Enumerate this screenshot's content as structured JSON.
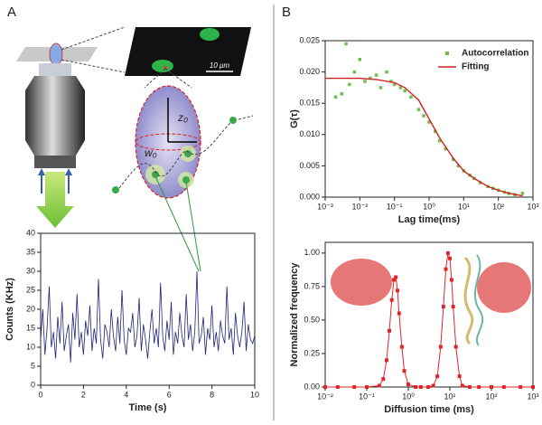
{
  "figure": {
    "panels": [
      "A",
      "B"
    ],
    "scale_bar": "10 μm",
    "labels": [
      "z₀",
      "w₀"
    ]
  },
  "chart_data": [
    {
      "type": "line",
      "xlabel": "Time (s)",
      "ylabel": "Counts (KHz)",
      "color": "#1f2378",
      "x": [
        0,
        0.1,
        0.2,
        0.3,
        0.4,
        0.5,
        0.6,
        0.7,
        0.8,
        0.9,
        1,
        1.1,
        1.2,
        1.3,
        1.4,
        1.5,
        1.6,
        1.7,
        1.8,
        1.9,
        2,
        2.1,
        2.2,
        2.3,
        2.4,
        2.5,
        2.6,
        2.7,
        2.8,
        2.9,
        3,
        3.1,
        3.2,
        3.3,
        3.4,
        3.5,
        3.6,
        3.7,
        3.8,
        3.9,
        4,
        4.1,
        4.2,
        4.3,
        4.4,
        4.5,
        4.6,
        4.7,
        4.8,
        4.9,
        5,
        5.1,
        5.2,
        5.3,
        5.4,
        5.5,
        5.6,
        5.7,
        5.8,
        5.9,
        6,
        6.1,
        6.2,
        6.3,
        6.4,
        6.5,
        6.6,
        6.7,
        6.8,
        6.9,
        7,
        7.1,
        7.2,
        7.3,
        7.4,
        7.5,
        7.6,
        7.7,
        7.8,
        7.9,
        8,
        8.1,
        8.2,
        8.3,
        8.4,
        8.5,
        8.6,
        8.7,
        8.8,
        8.9,
        9,
        9.1,
        9.2,
        9.3,
        9.4,
        9.5,
        9.6,
        9.7,
        9.8,
        9.9,
        10
      ],
      "values": [
        12,
        20,
        8,
        15,
        26,
        10,
        14,
        7,
        18,
        11,
        22,
        9,
        13,
        16,
        6,
        19,
        12,
        24,
        10,
        14,
        8,
        17,
        13,
        21,
        9,
        15,
        11,
        28,
        12,
        7,
        16,
        14,
        10,
        20,
        13,
        9,
        18,
        11,
        25,
        12,
        8,
        15,
        14,
        19,
        10,
        13,
        23,
        9,
        16,
        12,
        7,
        14,
        20,
        11,
        15,
        10,
        27,
        13,
        9,
        17,
        12,
        22,
        8,
        14,
        11,
        19,
        13,
        10,
        24,
        12,
        16,
        9,
        14,
        30,
        11,
        13,
        18,
        8,
        15,
        12,
        21,
        10,
        14,
        9,
        17,
        13,
        11,
        26,
        12,
        15,
        8,
        19,
        13,
        10,
        14,
        22,
        9,
        16,
        12,
        11,
        13
      ],
      "xlim": [
        0,
        10
      ],
      "xticks": [
        0,
        2,
        4,
        6,
        8,
        10
      ],
      "ylim": [
        0,
        40
      ],
      "yticks": [
        0,
        5,
        10,
        15,
        20,
        25,
        30,
        35,
        40
      ]
    },
    {
      "type": "scatter",
      "xlabel": "Lag time(ms)",
      "ylabel": "G(τ)",
      "xscale": "log",
      "legend": "upper right",
      "series": [
        {
          "name": "Autocorrelation",
          "type": "scatter",
          "color": "#6cbf4a",
          "x": [
            0.002,
            0.003,
            0.004,
            0.005,
            0.007,
            0.01,
            0.014,
            0.02,
            0.03,
            0.04,
            0.06,
            0.08,
            0.1,
            0.15,
            0.2,
            0.3,
            0.5,
            0.7,
            1,
            1.5,
            2,
            3,
            5,
            7,
            10,
            15,
            20,
            30,
            50,
            70,
            100,
            150,
            200,
            300,
            500
          ],
          "values": [
            0.016,
            0.0165,
            0.0245,
            0.018,
            0.02,
            0.022,
            0.0185,
            0.019,
            0.0195,
            0.0175,
            0.02,
            0.0185,
            0.018,
            0.0175,
            0.017,
            0.016,
            0.014,
            0.013,
            0.012,
            0.0105,
            0.009,
            0.0077,
            0.006,
            0.005,
            0.0042,
            0.0035,
            0.003,
            0.0023,
            0.0017,
            0.0014,
            0.0011,
            0.0008,
            0.0006,
            0.0004,
            0.0006
          ]
        },
        {
          "name": "Fitting",
          "type": "line",
          "color": "#d42020",
          "x": [
            0.001,
            0.01,
            0.03,
            0.1,
            0.2,
            0.5,
            1,
            2,
            5,
            10,
            20,
            50,
            100,
            200,
            500
          ],
          "values": [
            0.019,
            0.019,
            0.0188,
            0.0183,
            0.0175,
            0.0155,
            0.0125,
            0.0095,
            0.0062,
            0.0042,
            0.003,
            0.0017,
            0.0011,
            0.0006,
            0.0002
          ]
        }
      ],
      "xlim": [
        0.001,
        1000
      ],
      "xticks": [
        {
          "value": 0.001,
          "label": "10⁻³"
        },
        {
          "value": 0.01,
          "label": "10⁻²"
        },
        {
          "value": 0.1,
          "label": "10⁻¹"
        },
        {
          "value": 1,
          "label": "10⁰"
        },
        {
          "value": 10,
          "label": "10¹"
        },
        {
          "value": 100,
          "label": "10²"
        },
        {
          "value": 1000,
          "label": "10³"
        }
      ],
      "ylim": [
        0,
        0.025
      ],
      "yticks": [
        {
          "value": 0,
          "label": "0.000"
        },
        0.005,
        {
          "value": 0.01,
          "label": "0.010"
        },
        0.015,
        {
          "value": 0.02,
          "label": "0.020"
        },
        0.025
      ]
    },
    {
      "type": "line",
      "xlabel": "Diffusion time (ms)",
      "ylabel": "Normalized frequency",
      "xscale": "log",
      "color": "#e0252a",
      "marker": "square",
      "x": [
        0.01,
        0.02,
        0.05,
        0.1,
        0.2,
        0.25,
        0.3,
        0.35,
        0.4,
        0.45,
        0.5,
        0.55,
        0.6,
        0.7,
        0.8,
        1,
        1.5,
        2,
        3,
        4,
        5,
        6,
        7,
        8,
        9,
        10,
        11,
        12,
        14,
        17,
        20,
        30,
        50,
        100,
        200,
        500,
        1000
      ],
      "values": [
        0,
        0,
        0,
        0,
        0.01,
        0.06,
        0.2,
        0.42,
        0.65,
        0.8,
        0.82,
        0.72,
        0.55,
        0.3,
        0.12,
        0.02,
        0,
        0,
        0,
        0.01,
        0.08,
        0.3,
        0.6,
        0.88,
        1,
        0.96,
        0.8,
        0.6,
        0.3,
        0.08,
        0.01,
        0,
        0,
        0,
        0,
        0,
        0
      ],
      "xlim": [
        0.01,
        1000
      ],
      "xticks": [
        {
          "value": 0.01,
          "label": "10⁻²"
        },
        {
          "value": 0.1,
          "label": "10⁻¹"
        },
        {
          "value": 1,
          "label": "10⁰"
        },
        {
          "value": 10,
          "label": "10¹"
        },
        {
          "value": 100,
          "label": "10²"
        },
        {
          "value": 1000,
          "label": "10³"
        }
      ],
      "ylim": [
        0,
        1.08
      ],
      "yticks": [
        {
          "value": 0,
          "label": "0.00"
        },
        0.25,
        {
          "value": 0.5,
          "label": "0.50"
        },
        0.75,
        {
          "value": 1,
          "label": "1.00"
        }
      ]
    }
  ]
}
